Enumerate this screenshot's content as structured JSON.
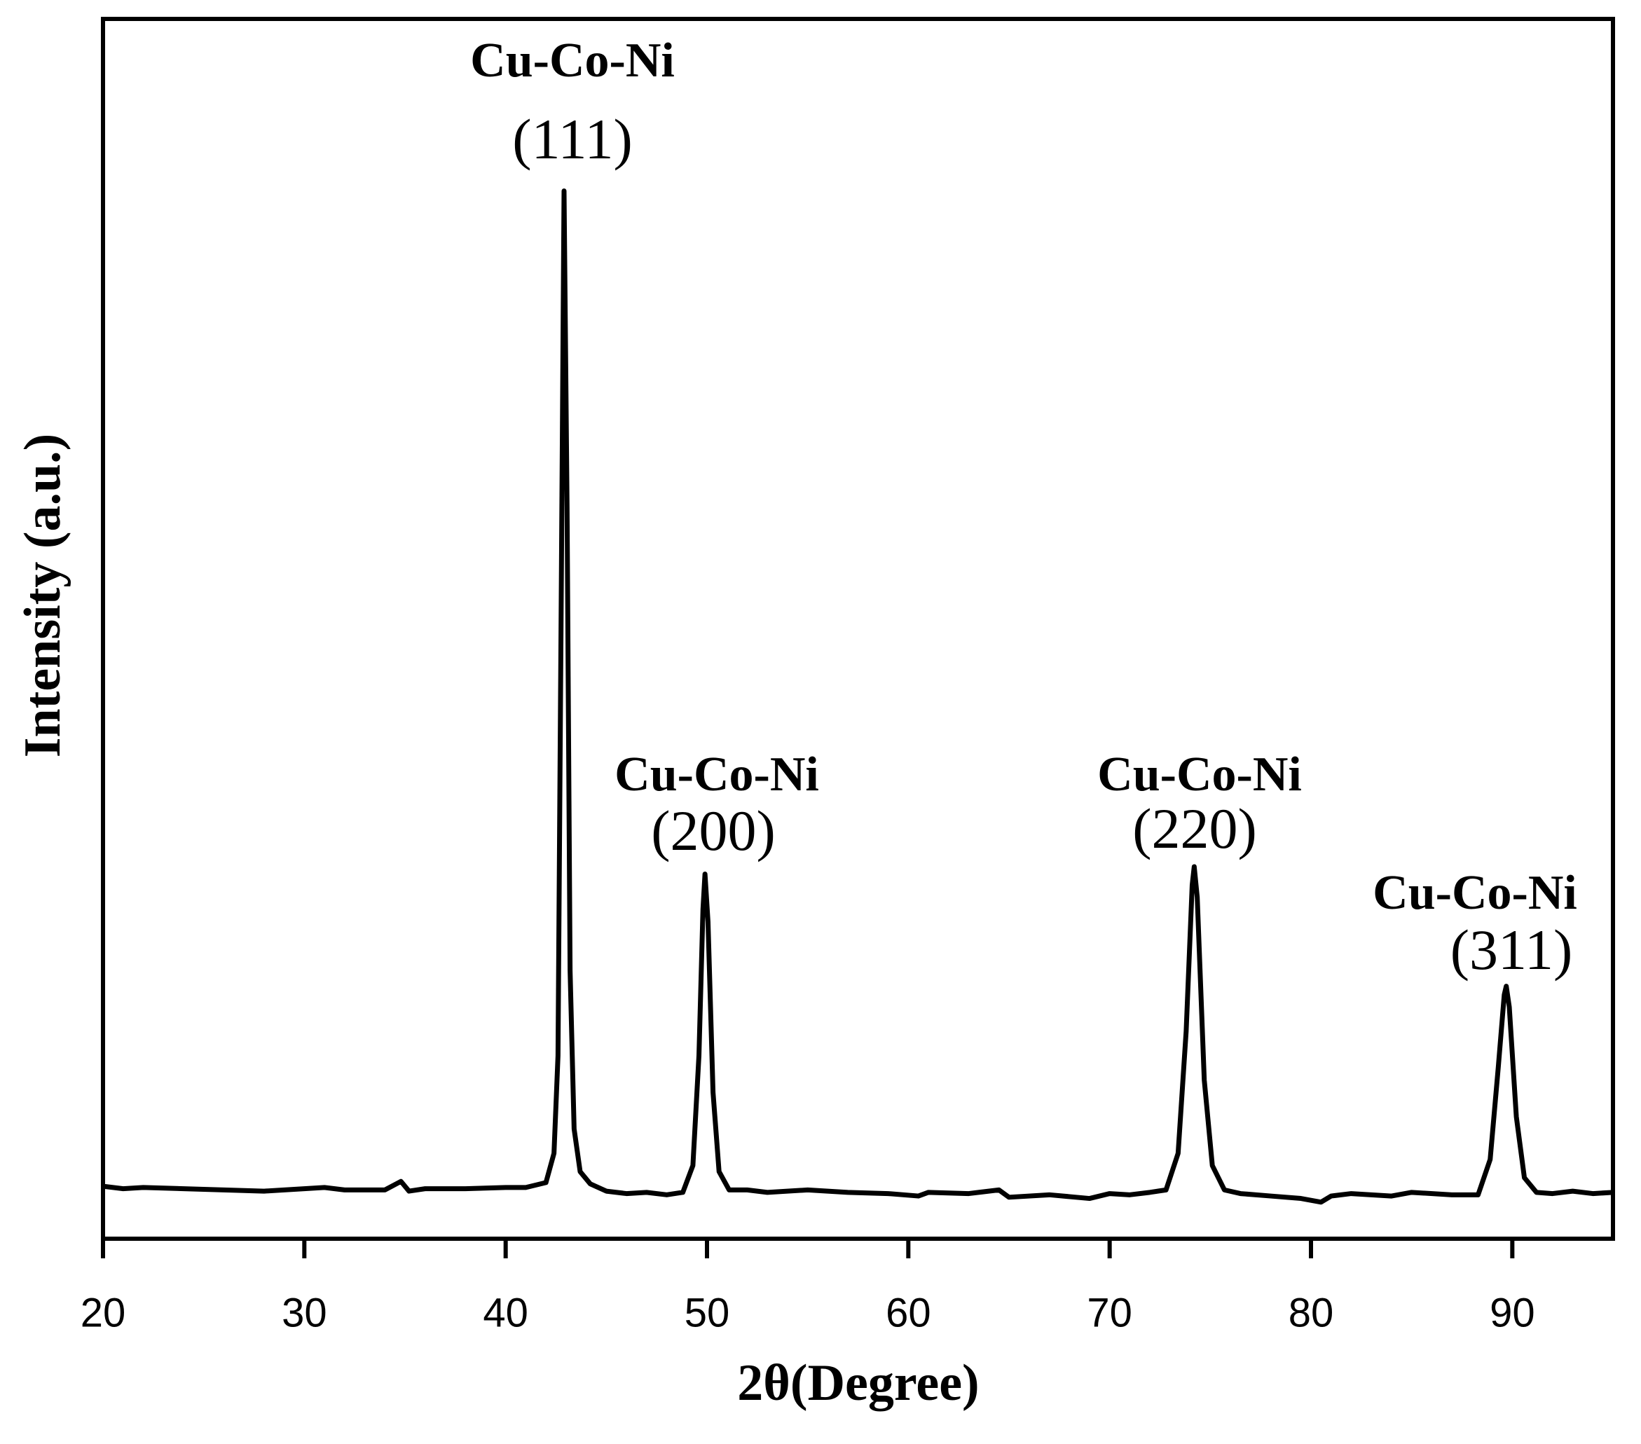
{
  "chart_data": {
    "type": "line",
    "x_label": "2θ(Degree)",
    "y_label": "Intensity (a.u.)",
    "xlim": [
      20,
      95
    ],
    "xticks": [
      20,
      30,
      40,
      50,
      60,
      70,
      80,
      90
    ],
    "ylim": [
      0,
      100
    ],
    "grid": false,
    "series": [
      {
        "color": "#000000",
        "x": [
          20,
          21,
          22,
          24,
          26,
          28,
          30,
          31,
          32,
          34,
          34.8,
          35.2,
          36,
          38,
          40,
          41,
          42,
          42.4,
          42.6,
          42.75,
          42.9,
          43.05,
          43.2,
          43.4,
          43.7,
          44.2,
          45,
          46,
          47,
          48,
          48.8,
          49.3,
          49.6,
          49.8,
          49.9,
          50.05,
          50.3,
          50.6,
          51.1,
          52,
          53,
          55,
          57,
          59,
          60.5,
          61,
          63,
          64.5,
          65,
          67,
          69,
          70,
          71,
          72,
          72.8,
          73.4,
          73.8,
          74.1,
          74.2,
          74.35,
          74.7,
          75.1,
          75.7,
          76.5,
          78,
          79.5,
          80.5,
          81,
          82,
          84,
          85,
          87,
          88.3,
          88.9,
          89.3,
          89.6,
          89.7,
          89.85,
          90.2,
          90.6,
          91.2,
          92,
          93,
          94,
          95
        ],
        "values": [
          4.3,
          4.1,
          4.2,
          4.1,
          4.0,
          3.9,
          4.1,
          4.2,
          4.0,
          4.0,
          4.7,
          3.9,
          4.1,
          4.1,
          4.2,
          4.2,
          4.6,
          7,
          15,
          50,
          85.9,
          60,
          22,
          9,
          5.5,
          4.5,
          3.9,
          3.7,
          3.8,
          3.6,
          3.8,
          6,
          15,
          27,
          29.9,
          26,
          12,
          5.5,
          4,
          4.0,
          3.8,
          4.0,
          3.8,
          3.7,
          3.5,
          3.8,
          3.7,
          4.0,
          3.4,
          3.6,
          3.3,
          3.7,
          3.6,
          3.8,
          4,
          7,
          17,
          29,
          30.5,
          28,
          13,
          6,
          4,
          3.7,
          3.5,
          3.3,
          3.0,
          3.5,
          3.7,
          3.5,
          3.8,
          3.6,
          3.6,
          6.5,
          14,
          20,
          20.7,
          19,
          10,
          5,
          3.8,
          3.7,
          3.9,
          3.7,
          3.8
        ]
      }
    ],
    "annotations": [
      [
        "Cu-Co-Ni",
        "(111)"
      ],
      [
        "Cu-Co-Ni",
        "(200)"
      ],
      [
        "Cu-Co-Ni",
        "(220)"
      ],
      [
        "Cu-Co-Ni",
        "(311)"
      ]
    ]
  }
}
